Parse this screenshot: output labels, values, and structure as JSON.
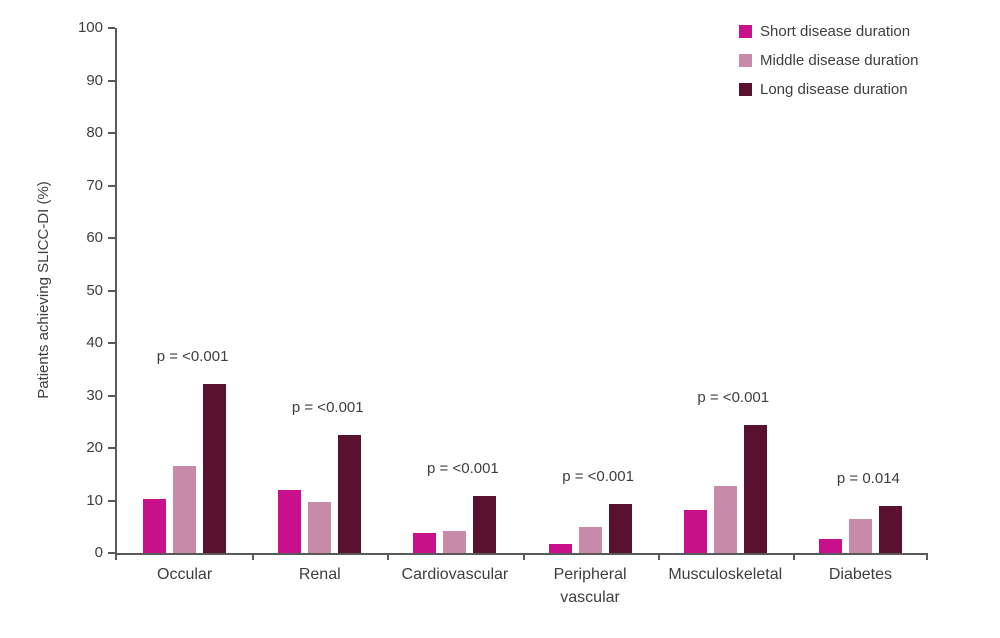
{
  "chart_data": {
    "type": "bar",
    "title": "",
    "xlabel": "",
    "ylabel": "Patients achieving SLICC-DI (%)",
    "ylim": [
      0,
      100
    ],
    "yticks": [
      0,
      10,
      20,
      30,
      40,
      50,
      60,
      70,
      80,
      90,
      100
    ],
    "grid": false,
    "legend_position": "top-right",
    "categories": [
      "Occular",
      "Renal",
      "Cardiovascular",
      "Peripheral vascular",
      "Musculoskeletal",
      "Diabetes"
    ],
    "series": [
      {
        "name": "Short disease duration",
        "color": "#C8108A",
        "values": [
          10.3,
          12.0,
          3.9,
          1.7,
          8.2,
          2.6
        ]
      },
      {
        "name": "Middle disease duration",
        "color": "#C78BA9",
        "values": [
          16.5,
          9.8,
          4.1,
          4.9,
          12.8,
          6.4
        ]
      },
      {
        "name": "Long disease duration",
        "color": "#5A1130",
        "values": [
          32.2,
          22.4,
          10.9,
          9.3,
          24.4,
          8.9
        ]
      }
    ],
    "p_labels": [
      "p = <0.001",
      "p = <0.001",
      "p = <0.001",
      "p = <0.001",
      "p = <0.001",
      "p = 0.014"
    ],
    "axis_color": "#595959",
    "text_color": "#3e3e3e",
    "background_color": "#FFFFFF"
  }
}
